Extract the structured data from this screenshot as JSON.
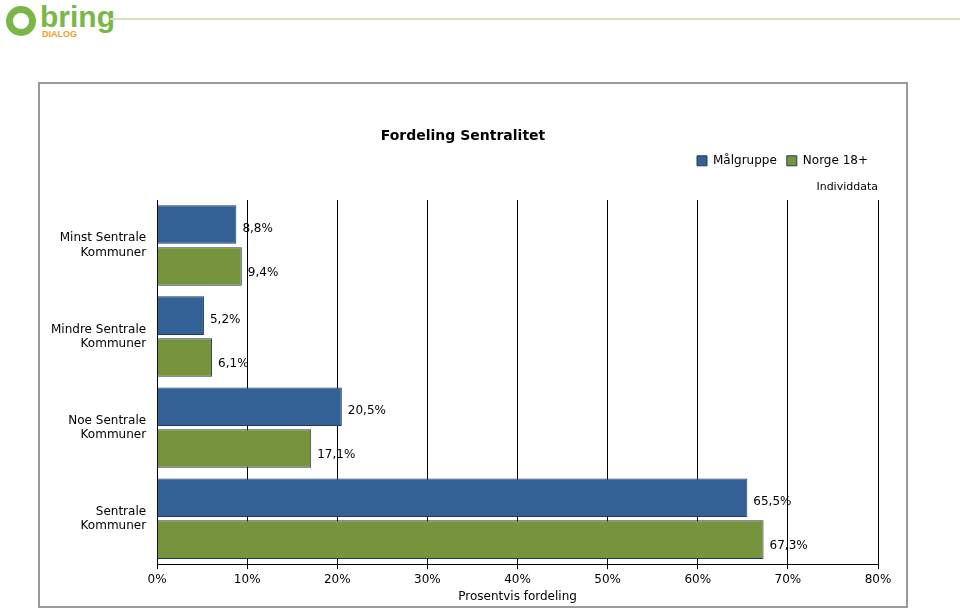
{
  "logo": {
    "text": "bring",
    "subtext": "DIALOG"
  },
  "chart_data": {
    "type": "bar",
    "orientation": "horizontal",
    "title": "Fordeling Sentralitet",
    "subtitle": "Individdata",
    "x_label": "Prosentvis fordeling",
    "categories": [
      "Minst Sentrale Kommuner",
      "Mindre Sentrale Kommuner",
      "Noe Sentrale Kommuner",
      "Sentrale Kommuner"
    ],
    "series": [
      {
        "name": "Målgruppe",
        "color": "#336196",
        "values": [
          8.8,
          5.2,
          20.5,
          65.5
        ],
        "value_labels": [
          "8,8%",
          "5,2%",
          "20,5%",
          "65,5%"
        ]
      },
      {
        "name": "Norge 18+",
        "color": "#77933c",
        "values": [
          9.4,
          6.1,
          17.1,
          67.3
        ],
        "value_labels": [
          "9,4%",
          "6,1%",
          "17,1%",
          "67,3%"
        ]
      }
    ],
    "xlim": [
      0,
      80
    ],
    "xticks": [
      {
        "value": 0,
        "label": "0%"
      },
      {
        "value": 10,
        "label": "10%"
      },
      {
        "value": 20,
        "label": "20%"
      },
      {
        "value": 30,
        "label": "30%"
      },
      {
        "value": 40,
        "label": "40%"
      },
      {
        "value": 50,
        "label": "50%"
      },
      {
        "value": 60,
        "label": "60%"
      },
      {
        "value": 70,
        "label": "70%"
      },
      {
        "value": 80,
        "label": "80%"
      }
    ],
    "grid": true,
    "legend": "top-right",
    "data_labels": true
  }
}
